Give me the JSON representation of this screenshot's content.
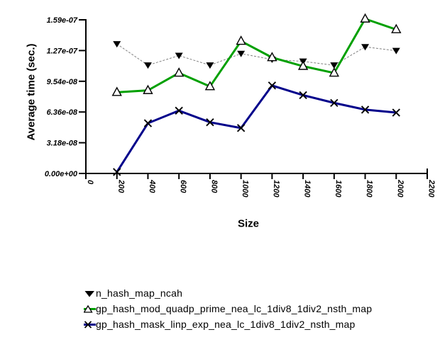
{
  "figure": {
    "background": "#ffffff",
    "axis_color": "#000000"
  },
  "chart_data": {
    "type": "line",
    "title": "",
    "xlabel": "Size",
    "ylabel": "Average time (sec.)",
    "grid": false,
    "legend_position": "bottom-left",
    "xlim": [
      0,
      2200
    ],
    "ylim": [
      0,
      1.59e-07
    ],
    "x": [
      200,
      400,
      600,
      800,
      1000,
      1200,
      1400,
      1600,
      1800,
      2000
    ],
    "x_ticks": [
      0,
      200,
      400,
      600,
      800,
      1000,
      1200,
      1400,
      1600,
      1800,
      2000,
      2200
    ],
    "y_ticks": [
      {
        "label": "0.00e+00",
        "value": 0
      },
      {
        "label": "3.18e-08",
        "value": 3.18e-08
      },
      {
        "label": "6.36e-08",
        "value": 6.36e-08
      },
      {
        "label": "9.54e-08",
        "value": 9.54e-08
      },
      {
        "label": "1.27e-07",
        "value": 1.272e-07
      },
      {
        "label": "1.59e-07",
        "value": 1.59e-07
      }
    ],
    "series": [
      {
        "name": "n_hash_map_ncah",
        "marker": "triangle-down-filled",
        "marker_color": "#000000",
        "color": "#000000",
        "line_color": "#808080",
        "line_style": "dashed",
        "line_width": 1,
        "legend_line": false,
        "values": [
          1.34e-07,
          1.12e-07,
          1.22e-07,
          1.12e-07,
          1.24e-07,
          1.18e-07,
          1.16e-07,
          1.12e-07,
          1.31e-07,
          1.27e-07
        ]
      },
      {
        "name": "gp_hash_mod_quadp_prime_nea_lc_1div8_1div2_nsth_map",
        "marker": "triangle-up-open",
        "marker_color": "#000000",
        "color": "#00a000",
        "line_color": "#00a000",
        "line_style": "solid",
        "line_width": 3,
        "legend_line": true,
        "values": [
          8.4e-08,
          8.6e-08,
          1.04e-07,
          9e-08,
          1.37e-07,
          1.2e-07,
          1.11e-07,
          1.04e-07,
          1.6e-07,
          1.49e-07
        ]
      },
      {
        "name": "gp_hash_mask_linp_exp_nea_lc_1div8_1div2_nsth_map",
        "marker": "x",
        "marker_color": "#000000",
        "color": "#00008b",
        "line_color": "#00008b",
        "line_style": "solid",
        "line_width": 3,
        "legend_line": true,
        "values": [
          1.5e-09,
          5.2e-08,
          6.5e-08,
          5.3e-08,
          4.7e-08,
          9.1e-08,
          8.1e-08,
          7.3e-08,
          6.6e-08,
          6.3e-08
        ]
      }
    ]
  }
}
